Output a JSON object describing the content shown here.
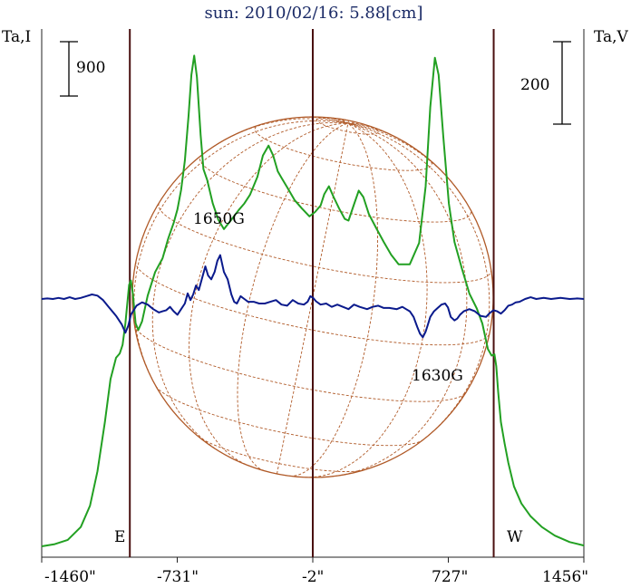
{
  "chart_data": {
    "type": "line",
    "title": "sun: 2010/02/16: 5.88[cm]",
    "left_axis_label": "Ta,I",
    "right_axis_label": "Ta,V",
    "left_scale_label": "900",
    "right_scale_label": "200",
    "x_ticks": [
      "-1460\"",
      "-731\"",
      "-2\"",
      "727\"",
      "1456\""
    ],
    "x_tick_values": [
      -1460,
      -731,
      -2,
      727,
      1456
    ],
    "xlim": [
      -1460,
      1456
    ],
    "limb_markers": [
      {
        "label": "E",
        "x": -986
      },
      {
        "label": "W",
        "x": 971
      }
    ],
    "center_line_x": -2,
    "annotations": [
      {
        "text": "1650G",
        "x": -830
      },
      {
        "text": "1630G",
        "x": 535
      }
    ],
    "series": [
      {
        "color": "#22a022",
        "points": [
          [
            -1460,
            0
          ],
          [
            -1390,
            5
          ],
          [
            -1320,
            15
          ],
          [
            -1250,
            45
          ],
          [
            -1200,
            95
          ],
          [
            -1160,
            175
          ],
          [
            -1120,
            290
          ],
          [
            -1090,
            390
          ],
          [
            -1060,
            440
          ],
          [
            -1040,
            450
          ],
          [
            -1025,
            470
          ],
          [
            -1010,
            520
          ],
          [
            -990,
            610
          ],
          [
            -980,
            620
          ],
          [
            -970,
            590
          ],
          [
            -955,
            520
          ],
          [
            -940,
            505
          ],
          [
            -920,
            525
          ],
          [
            -890,
            585
          ],
          [
            -850,
            640
          ],
          [
            -810,
            672
          ],
          [
            -780,
            718
          ],
          [
            -750,
            755
          ],
          [
            -730,
            786
          ],
          [
            -710,
            832
          ],
          [
            -690,
            900
          ],
          [
            -670,
            1005
          ],
          [
            -655,
            1100
          ],
          [
            -640,
            1145
          ],
          [
            -625,
            1095
          ],
          [
            -605,
            960
          ],
          [
            -590,
            880
          ],
          [
            -570,
            855
          ],
          [
            -540,
            800
          ],
          [
            -510,
            762
          ],
          [
            -480,
            740
          ],
          [
            -440,
            762
          ],
          [
            -400,
            785
          ],
          [
            -370,
            800
          ],
          [
            -340,
            820
          ],
          [
            -300,
            862
          ],
          [
            -270,
            912
          ],
          [
            -240,
            935
          ],
          [
            -215,
            912
          ],
          [
            -190,
            875
          ],
          [
            -170,
            860
          ],
          [
            -140,
            838
          ],
          [
            -100,
            808
          ],
          [
            -60,
            788
          ],
          [
            -20,
            770
          ],
          [
            10,
            780
          ],
          [
            40,
            795
          ],
          [
            60,
            822
          ],
          [
            85,
            840
          ],
          [
            110,
            815
          ],
          [
            140,
            788
          ],
          [
            170,
            764
          ],
          [
            190,
            760
          ],
          [
            220,
            798
          ],
          [
            245,
            830
          ],
          [
            270,
            815
          ],
          [
            300,
            775
          ],
          [
            340,
            742
          ],
          [
            380,
            710
          ],
          [
            420,
            680
          ],
          [
            460,
            658
          ],
          [
            520,
            658
          ],
          [
            570,
            708
          ],
          [
            605,
            840
          ],
          [
            630,
            1025
          ],
          [
            655,
            1140
          ],
          [
            675,
            1100
          ],
          [
            700,
            955
          ],
          [
            730,
            800
          ],
          [
            760,
            710
          ],
          [
            800,
            648
          ],
          [
            840,
            590
          ],
          [
            880,
            555
          ],
          [
            910,
            520
          ],
          [
            940,
            460
          ],
          [
            960,
            445
          ],
          [
            975,
            448
          ],
          [
            985,
            420
          ],
          [
            995,
            360
          ],
          [
            1010,
            290
          ],
          [
            1030,
            240
          ],
          [
            1050,
            195
          ],
          [
            1080,
            140
          ],
          [
            1120,
            100
          ],
          [
            1170,
            70
          ],
          [
            1230,
            45
          ],
          [
            1300,
            25
          ],
          [
            1380,
            10
          ],
          [
            1456,
            2
          ]
        ]
      },
      {
        "color": "#0a1a8c",
        "points": [
          [
            -1460,
            0
          ],
          [
            -1430,
            1
          ],
          [
            -1400,
            0
          ],
          [
            -1370,
            2
          ],
          [
            -1340,
            0
          ],
          [
            -1310,
            3
          ],
          [
            -1280,
            0
          ],
          [
            -1250,
            2
          ],
          [
            -1220,
            5
          ],
          [
            -1190,
            8
          ],
          [
            -1160,
            6
          ],
          [
            -1130,
            -2
          ],
          [
            -1100,
            -14
          ],
          [
            -1060,
            -30
          ],
          [
            -1030,
            -45
          ],
          [
            -1010,
            -60
          ],
          [
            -995,
            -48
          ],
          [
            -980,
            -28
          ],
          [
            -965,
            -20
          ],
          [
            -950,
            -12
          ],
          [
            -920,
            -6
          ],
          [
            -890,
            -10
          ],
          [
            -860,
            -18
          ],
          [
            -830,
            -24
          ],
          [
            -810,
            -22
          ],
          [
            -790,
            -20
          ],
          [
            -770,
            -14
          ],
          [
            -750,
            -22
          ],
          [
            -730,
            -28
          ],
          [
            -710,
            -18
          ],
          [
            -690,
            -8
          ],
          [
            -675,
            10
          ],
          [
            -660,
            -2
          ],
          [
            -645,
            8
          ],
          [
            -630,
            24
          ],
          [
            -615,
            16
          ],
          [
            -595,
            40
          ],
          [
            -580,
            58
          ],
          [
            -565,
            42
          ],
          [
            -548,
            35
          ],
          [
            -530,
            48
          ],
          [
            -515,
            68
          ],
          [
            -500,
            78
          ],
          [
            -480,
            48
          ],
          [
            -460,
            35
          ],
          [
            -440,
            8
          ],
          [
            -425,
            -5
          ],
          [
            -410,
            -8
          ],
          [
            -390,
            5
          ],
          [
            -370,
            0
          ],
          [
            -350,
            -5
          ],
          [
            -320,
            -5
          ],
          [
            -290,
            -8
          ],
          [
            -260,
            -8
          ],
          [
            -230,
            -5
          ],
          [
            -200,
            -2
          ],
          [
            -170,
            -10
          ],
          [
            -140,
            -12
          ],
          [
            -110,
            -2
          ],
          [
            -80,
            -8
          ],
          [
            -50,
            -10
          ],
          [
            -30,
            -5
          ],
          [
            -15,
            5
          ],
          [
            0,
            2
          ],
          [
            15,
            -4
          ],
          [
            40,
            -10
          ],
          [
            70,
            -8
          ],
          [
            100,
            -14
          ],
          [
            130,
            -10
          ],
          [
            160,
            -14
          ],
          [
            190,
            -18
          ],
          [
            220,
            -10
          ],
          [
            250,
            -14
          ],
          [
            290,
            -18
          ],
          [
            320,
            -14
          ],
          [
            350,
            -12
          ],
          [
            380,
            -16
          ],
          [
            410,
            -16
          ],
          [
            450,
            -18
          ],
          [
            480,
            -14
          ],
          [
            500,
            -18
          ],
          [
            520,
            -22
          ],
          [
            540,
            -32
          ],
          [
            560,
            -50
          ],
          [
            575,
            -62
          ],
          [
            590,
            -68
          ],
          [
            605,
            -58
          ],
          [
            615,
            -48
          ],
          [
            630,
            -32
          ],
          [
            650,
            -22
          ],
          [
            670,
            -16
          ],
          [
            690,
            -10
          ],
          [
            710,
            -8
          ],
          [
            725,
            -15
          ],
          [
            740,
            -32
          ],
          [
            760,
            -38
          ],
          [
            775,
            -35
          ],
          [
            790,
            -28
          ],
          [
            810,
            -22
          ],
          [
            840,
            -18
          ],
          [
            870,
            -22
          ],
          [
            900,
            -30
          ],
          [
            930,
            -32
          ],
          [
            950,
            -25
          ],
          [
            970,
            -20
          ],
          [
            990,
            -22
          ],
          [
            1010,
            -26
          ],
          [
            1030,
            -20
          ],
          [
            1050,
            -12
          ],
          [
            1070,
            -10
          ],
          [
            1090,
            -6
          ],
          [
            1110,
            -5
          ],
          [
            1140,
            0
          ],
          [
            1170,
            3
          ],
          [
            1200,
            0
          ],
          [
            1240,
            2
          ],
          [
            1280,
            0
          ],
          [
            1330,
            2
          ],
          [
            1380,
            0
          ],
          [
            1420,
            1
          ],
          [
            1456,
            0
          ]
        ]
      }
    ],
    "disk_color": "#b05a28",
    "frame_line_color": "#4a1010",
    "background": "#ffffff"
  }
}
